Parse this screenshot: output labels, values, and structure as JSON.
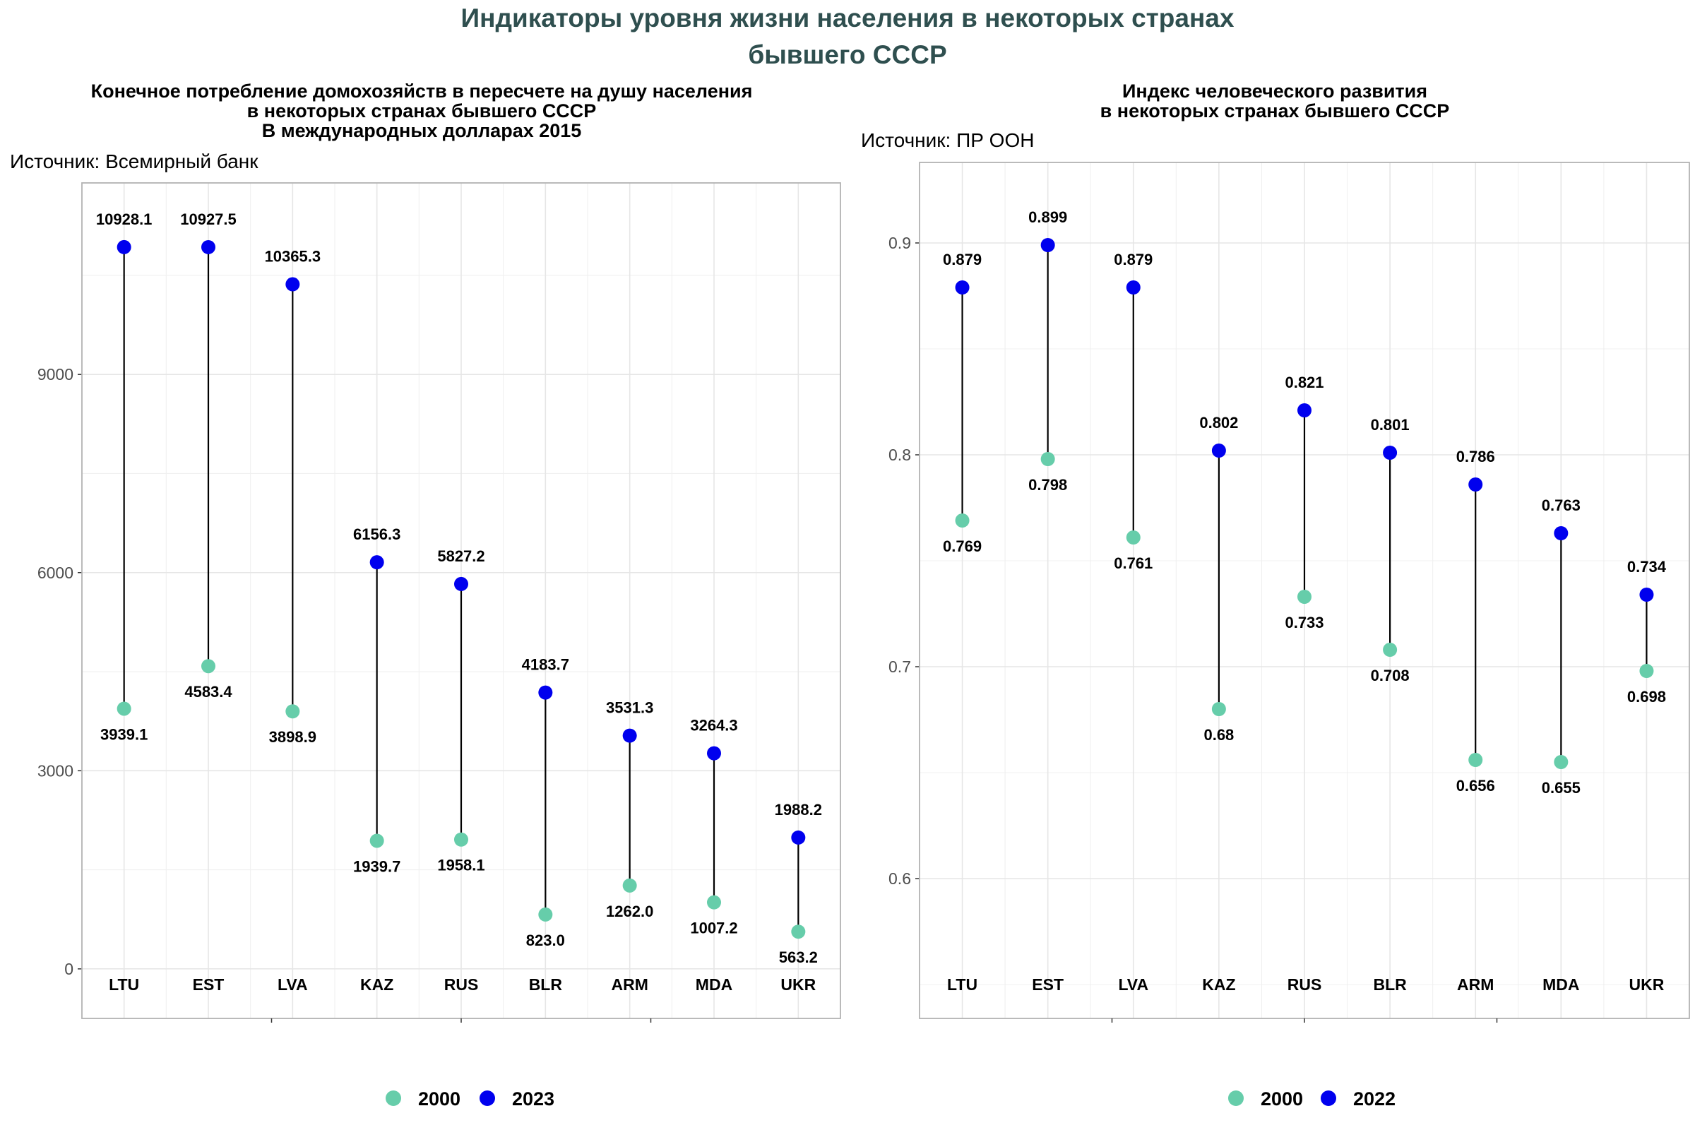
{
  "title": {
    "line1": "Индикаторы уровня жизни населения в некоторых странах",
    "line2": "бывшего СССР"
  },
  "chart_data": [
    {
      "type": "dumbbell",
      "title": [
        "Конечное потребление домохозяйств в пересчете на душу населения",
        "в некоторых странах бывшего СССР",
        "В международных долларах 2015"
      ],
      "source": "Источник: Всемирный банк",
      "categories": [
        "LTU",
        "EST",
        "LVA",
        "KAZ",
        "RUS",
        "BLR",
        "ARM",
        "MDA",
        "UKR"
      ],
      "series": [
        {
          "name": "2000",
          "color": "#66CDAA",
          "values": [
            3939.1,
            4583.4,
            3898.9,
            1939.7,
            1958.1,
            823.0,
            1262.0,
            1007.2,
            563.2
          ],
          "labels": [
            "3939.1",
            "4583.4",
            "3898.9",
            "1939.7",
            "1958.1",
            "823.0",
            "1262.0",
            "1007.2",
            "563.2"
          ]
        },
        {
          "name": "2023",
          "color": "#0000EE",
          "values": [
            10928.1,
            10927.5,
            10365.3,
            6156.3,
            5827.2,
            4183.7,
            3531.3,
            3264.3,
            1988.2
          ],
          "labels": [
            "10928.1",
            "10927.5",
            "10365.3",
            "6156.3",
            "5827.2",
            "4183.7",
            "3531.3",
            "3264.3",
            "1988.2"
          ]
        }
      ],
      "ylim": [
        -750,
        11900
      ],
      "yticks": [
        0,
        3000,
        6000,
        9000
      ],
      "ytick_labels": [
        "0",
        "3000",
        "6000",
        "9000"
      ],
      "grid": true,
      "legend": "bottom"
    },
    {
      "type": "dumbbell",
      "title": [
        "Индекс человеческого развития",
        "в некоторых странах бывшего СССР"
      ],
      "source": "Источник: ПР ООН",
      "categories": [
        "LTU",
        "EST",
        "LVA",
        "KAZ",
        "RUS",
        "BLR",
        "ARM",
        "MDA",
        "UKR"
      ],
      "series": [
        {
          "name": "2000",
          "color": "#66CDAA",
          "values": [
            0.769,
            0.798,
            0.761,
            0.68,
            0.733,
            0.708,
            0.656,
            0.655,
            0.698
          ],
          "labels": [
            "0.769",
            "0.798",
            "0.761",
            "0.68",
            "0.733",
            "0.708",
            "0.656",
            "0.655",
            "0.698"
          ]
        },
        {
          "name": "2022",
          "color": "#0000EE",
          "values": [
            0.879,
            0.899,
            0.879,
            0.802,
            0.821,
            0.801,
            0.786,
            0.763,
            0.734
          ],
          "labels": [
            "0.879",
            "0.899",
            "0.879",
            "0.802",
            "0.821",
            "0.801",
            "0.786",
            "0.763",
            "0.734"
          ]
        }
      ],
      "ylim": [
        0.534,
        0.938
      ],
      "yticks": [
        0.6,
        0.7,
        0.8,
        0.9
      ],
      "ytick_labels": [
        "0.6",
        "0.7",
        "0.8",
        "0.9"
      ],
      "grid": true,
      "legend": "bottom"
    }
  ]
}
